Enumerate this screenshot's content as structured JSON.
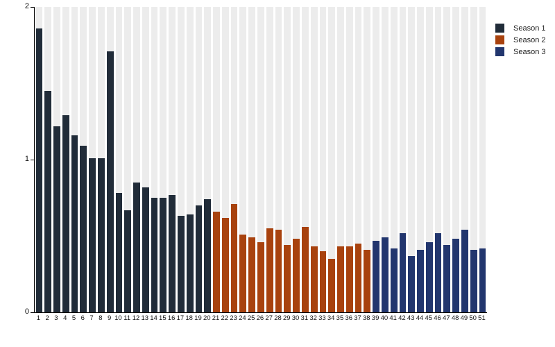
{
  "chart_data": {
    "type": "bar",
    "title": "",
    "xlabel": "",
    "ylabel": "",
    "ylim": [
      0,
      2
    ],
    "yticks": [
      "0",
      "1",
      "2"
    ],
    "grid": false,
    "plot_background": "striped-vertical-bands",
    "band_color": "#ececec",
    "legend_position": "top-right",
    "x_tick_labels": [
      "1",
      "2",
      "3",
      "4",
      "5",
      "6",
      "7",
      "8",
      "9",
      "10",
      "11",
      "12",
      "13",
      "14",
      "15",
      "16",
      "17",
      "18",
      "19",
      "20",
      "21",
      "22",
      "23",
      "24",
      "25",
      "26",
      "27",
      "28",
      "29",
      "30",
      "31",
      "32",
      "33",
      "34",
      "35",
      "36",
      "37",
      "38",
      "39",
      "40",
      "41",
      "42",
      "43",
      "44",
      "45",
      "46",
      "47",
      "48",
      "49",
      "50",
      "51"
    ],
    "series": [
      {
        "name": "Season 1",
        "color": "#212c39",
        "x": [
          1,
          2,
          3,
          4,
          5,
          6,
          7,
          8,
          9,
          10,
          11,
          12,
          13,
          14,
          15,
          16,
          17,
          18,
          19,
          20
        ],
        "values": [
          1.86,
          1.45,
          1.22,
          1.29,
          1.16,
          1.09,
          1.01,
          1.01,
          1.71,
          0.78,
          0.67,
          0.85,
          0.82,
          0.75,
          0.75,
          0.77,
          0.63,
          0.64,
          0.7,
          0.74
        ]
      },
      {
        "name": "Season 2",
        "color": "#a8420e",
        "x": [
          21,
          22,
          23,
          24,
          25,
          26,
          27,
          28,
          29,
          30,
          31,
          32,
          33,
          34,
          35,
          36,
          37,
          38
        ],
        "values": [
          0.66,
          0.62,
          0.71,
          0.51,
          0.49,
          0.46,
          0.55,
          0.54,
          0.44,
          0.48,
          0.56,
          0.43,
          0.4,
          0.35,
          0.43,
          0.43,
          0.45,
          0.41
        ]
      },
      {
        "name": "Season 3",
        "color": "#22366e",
        "x": [
          39,
          40,
          41,
          42,
          43,
          44,
          45,
          46,
          47,
          48,
          49,
          50,
          51
        ],
        "values": [
          0.47,
          0.49,
          0.42,
          0.52,
          0.37,
          0.41,
          0.46,
          0.52,
          0.44,
          0.48,
          0.54,
          0.41,
          0.42
        ]
      }
    ]
  },
  "legend": {
    "items": [
      {
        "label": "Season 1",
        "color": "#212c39"
      },
      {
        "label": "Season 2",
        "color": "#a8420e"
      },
      {
        "label": "Season 3",
        "color": "#22366e"
      }
    ]
  }
}
